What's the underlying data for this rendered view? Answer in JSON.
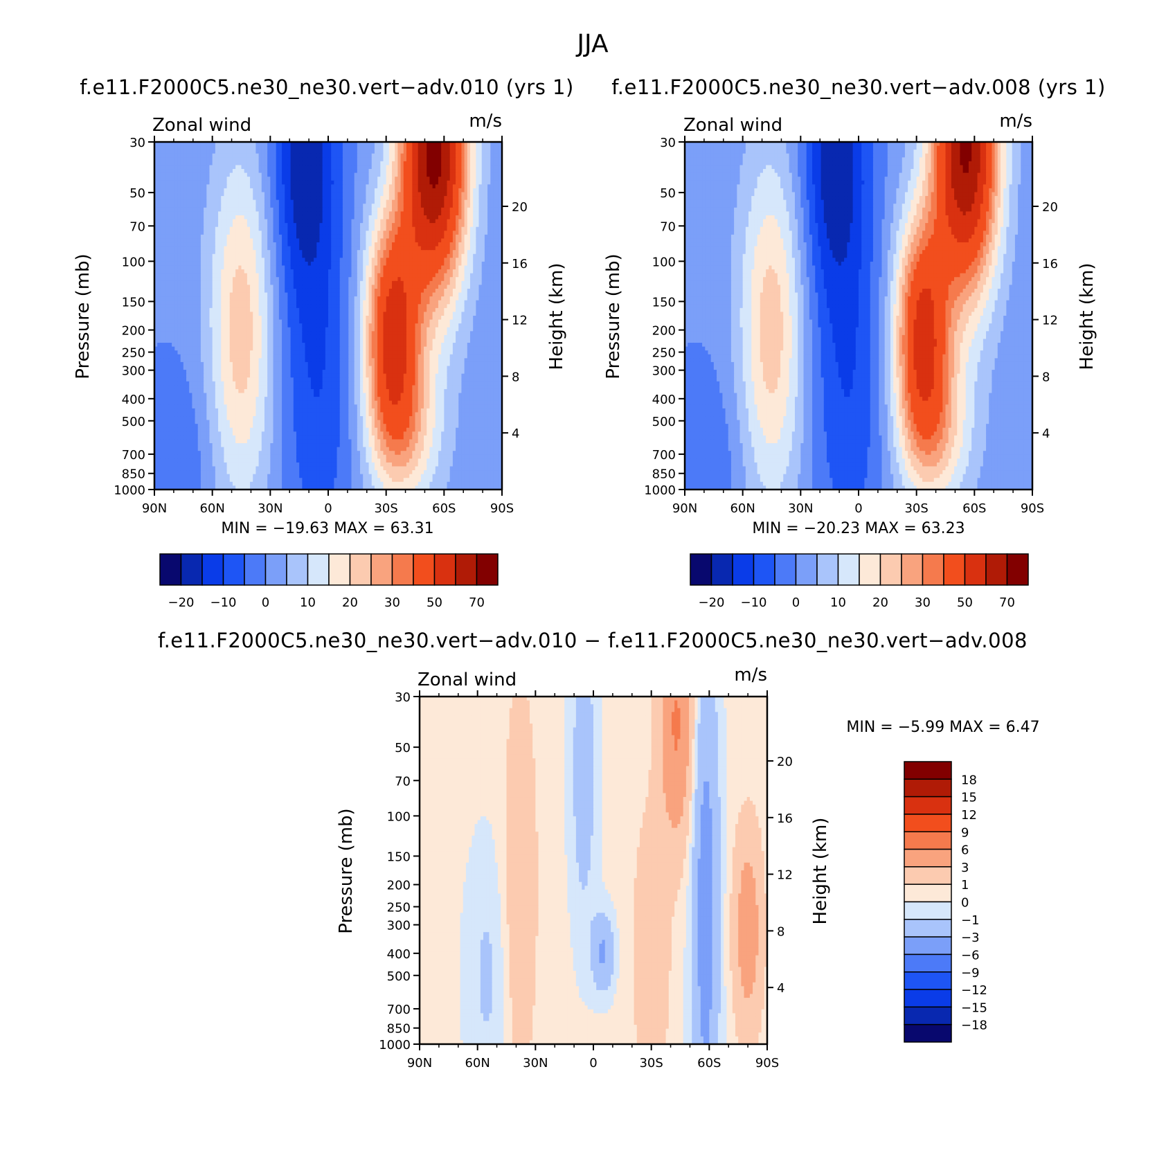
{
  "figure": {
    "title": "JJA"
  },
  "colors": {
    "panel_scale": [
      "#08086e",
      "#0828b0",
      "#0a3ce8",
      "#1e55f5",
      "#4c7af8",
      "#7b9ff9",
      "#a9c4fb",
      "#d6e7fb",
      "#fde9d8",
      "#fccbb0",
      "#f9a37e",
      "#f57a4d",
      "#f24e1d",
      "#d93110",
      "#b01b06",
      "#820000"
    ],
    "diff_scale": [
      "#08086e",
      "#0828b0",
      "#0a3ce8",
      "#1e55f5",
      "#4c7af8",
      "#7b9ff9",
      "#a9c4fb",
      "#d6e7fb",
      "#fde9d8",
      "#fccbb0",
      "#f9a37e",
      "#f57a4d",
      "#f24e1d",
      "#d93110",
      "#b01b06",
      "#820000"
    ]
  },
  "panels": [
    {
      "id": "p1",
      "title": "f.e11.F2000C5.ne30_ne30.vert−adv.010 (yrs 1)",
      "field_label": "Zonal wind",
      "units": "m/s",
      "stats": "MIN = −19.63 MAX = 63.31",
      "ylabel_left": "Pressure (mb)",
      "ylabel_right": "Height (km)"
    },
    {
      "id": "p2",
      "title": "f.e11.F2000C5.ne30_ne30.vert−adv.008 (yrs 1)",
      "field_label": "Zonal wind",
      "units": "m/s",
      "stats": "MIN = −20.23 MAX = 63.23",
      "ylabel_left": "Pressure (mb)",
      "ylabel_right": "Height (km)"
    },
    {
      "id": "p3",
      "title": "f.e11.F2000C5.ne30_ne30.vert−adv.010 − f.e11.F2000C5.ne30_ne30.vert−adv.008",
      "field_label": "Zonal wind",
      "units": "m/s",
      "stats": "MIN = −5.99 MAX = 6.47",
      "ylabel_left": "Pressure (mb)",
      "ylabel_right": "Height (km)"
    }
  ],
  "chart_data": [
    {
      "type": "heatmap",
      "title": "f.e11.F2000C5.ne30_ne30.vert−adv.010 (yrs 1)",
      "xlabel": "",
      "ylabel": "Pressure (mb)",
      "y2label": "Height (km)",
      "x_ticks": [
        "90N",
        "60N",
        "30N",
        "0",
        "30S",
        "60S",
        "90S"
      ],
      "y_ticks": [
        30,
        50,
        70,
        100,
        150,
        200,
        250,
        300,
        400,
        500,
        700,
        850,
        1000
      ],
      "y_scale": "log",
      "y2_ticks": [
        4,
        8,
        12,
        16,
        20
      ],
      "colorbar_levels": [
        -25,
        -20,
        -15,
        -10,
        -5,
        0,
        5,
        10,
        15,
        20,
        25,
        30,
        40,
        50,
        60,
        70
      ],
      "colorbar_labels": [
        "−20",
        "−10",
        "0",
        "10",
        "20",
        "30",
        "50",
        "70"
      ],
      "min": -19.63,
      "max": 63.31,
      "features": [
        {
          "name": "northern subtropical westerly max",
          "lat": 45,
          "p": 200,
          "value": 18
        },
        {
          "name": "southern polar-night jet",
          "lat": -60,
          "p": 30,
          "value": 63
        },
        {
          "name": "southern subtropical jet",
          "lat": -32,
          "p": 200,
          "value": 50
        },
        {
          "name": "tropical easterlies",
          "lat": 15,
          "p": 30,
          "value": -20
        }
      ]
    },
    {
      "type": "heatmap",
      "title": "f.e11.F2000C5.ne30_ne30.vert−adv.008 (yrs 1)",
      "xlabel": "",
      "ylabel": "Pressure (mb)",
      "y2label": "Height (km)",
      "x_ticks": [
        "90N",
        "60N",
        "30N",
        "0",
        "30S",
        "60S",
        "90S"
      ],
      "y_ticks": [
        30,
        50,
        70,
        100,
        150,
        200,
        250,
        300,
        400,
        500,
        700,
        850,
        1000
      ],
      "y_scale": "log",
      "y2_ticks": [
        4,
        8,
        12,
        16,
        20
      ],
      "colorbar_levels": [
        -25,
        -20,
        -15,
        -10,
        -5,
        0,
        5,
        10,
        15,
        20,
        25,
        30,
        40,
        50,
        60,
        70
      ],
      "colorbar_labels": [
        "−20",
        "−10",
        "0",
        "10",
        "20",
        "30",
        "50",
        "70"
      ],
      "min": -20.23,
      "max": 63.23,
      "features": [
        {
          "name": "northern subtropical westerly max",
          "lat": 45,
          "p": 200,
          "value": 18
        },
        {
          "name": "southern polar-night jet",
          "lat": -60,
          "p": 30,
          "value": 63
        },
        {
          "name": "southern subtropical jet",
          "lat": -32,
          "p": 200,
          "value": 50
        },
        {
          "name": "tropical easterlies",
          "lat": 15,
          "p": 30,
          "value": -20
        }
      ]
    },
    {
      "type": "heatmap",
      "title": "f.e11.F2000C5.ne30_ne30.vert−adv.010 − f.e11.F2000C5.ne30_ne30.vert−adv.008",
      "xlabel": "",
      "ylabel": "Pressure (mb)",
      "y2label": "Height (km)",
      "x_ticks": [
        "90N",
        "60N",
        "30N",
        "0",
        "30S",
        "60S",
        "90S"
      ],
      "y_ticks": [
        30,
        50,
        70,
        100,
        150,
        200,
        250,
        300,
        400,
        500,
        700,
        850,
        1000
      ],
      "y_scale": "log",
      "y2_ticks": [
        4,
        8,
        12,
        16,
        20
      ],
      "colorbar_levels": [
        -18,
        -15,
        -12,
        -9,
        -6,
        -3,
        -1,
        0,
        1,
        3,
        6,
        9,
        12,
        15,
        18
      ],
      "colorbar_labels": [
        "18",
        "15",
        "12",
        "9",
        "6",
        "3",
        "1",
        "0",
        "−1",
        "−3",
        "−6",
        "−9",
        "−12",
        "−15",
        "−18"
      ],
      "min": -5.99,
      "max": 6.47,
      "features": [
        {
          "name": "positive difference near 45S upper",
          "lat": -45,
          "p": 30,
          "value": 6
        },
        {
          "name": "negative band near 60S",
          "lat": -58,
          "p": 300,
          "value": -3
        },
        {
          "name": "positive band near 80S",
          "lat": -80,
          "p": 300,
          "value": 4
        }
      ]
    }
  ]
}
